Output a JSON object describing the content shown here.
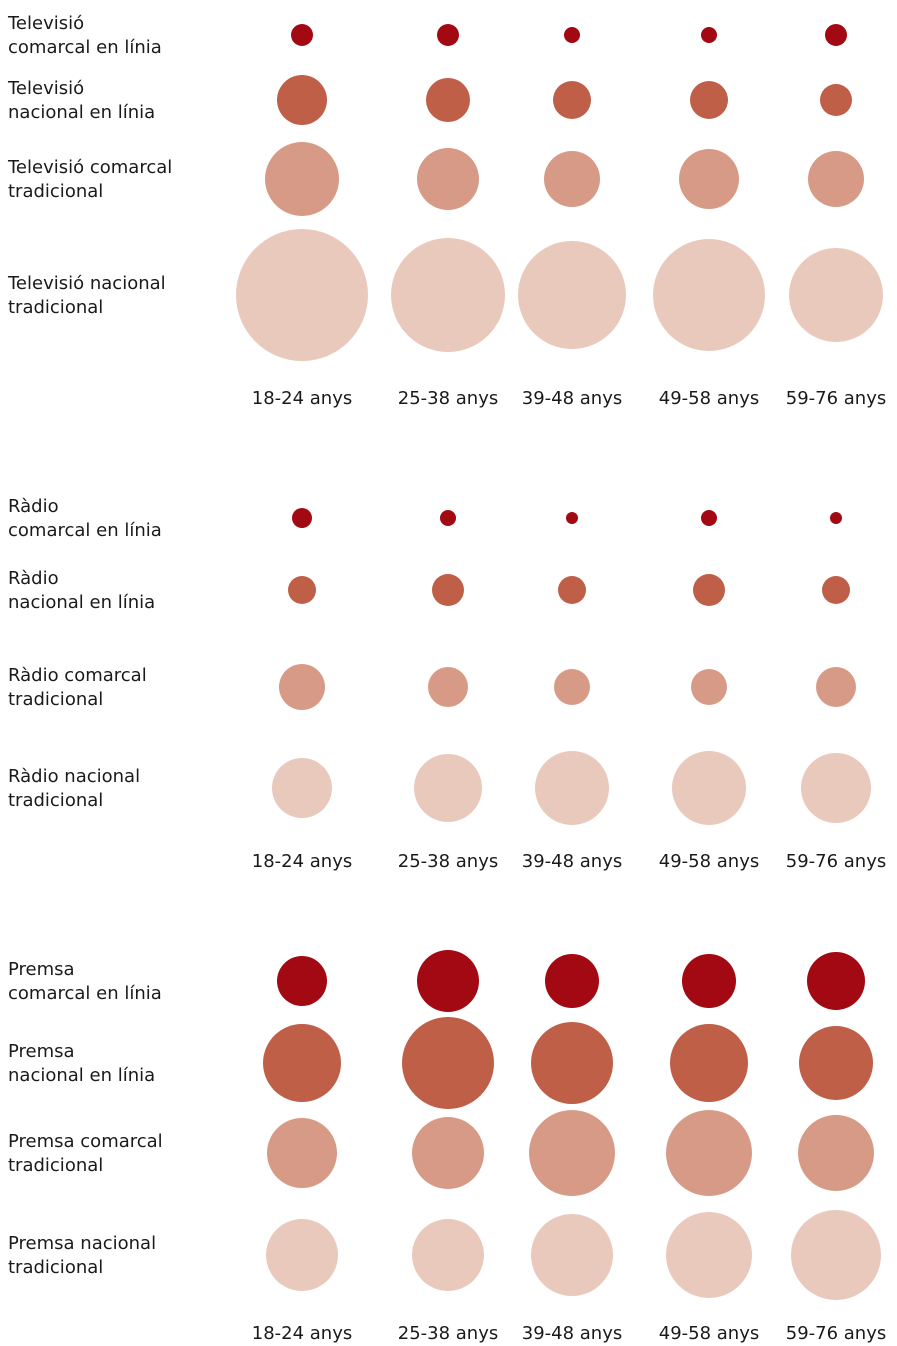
{
  "chart_data": {
    "type": "bubble",
    "categories": [
      "18-24 anys",
      "25-38 anys",
      "39-48 anys",
      "49-58 anys",
      "59-76 anys"
    ],
    "colors": {
      "comarcal_en_linia": "#a20912",
      "nacional_en_linia": "#bf5f47",
      "comarcal_tradicional": "#d79a86",
      "nacional_tradicional": "#e9c9bc"
    },
    "panels": [
      {
        "id": "televisio",
        "rows": [
          {
            "label": [
              "Televisió",
              "comarcal en línia"
            ],
            "color_key": "comarcal_en_linia",
            "values": [
              11,
              11,
              8,
              8,
              11
            ]
          },
          {
            "label": [
              "Televisió",
              "nacional en línia"
            ],
            "color_key": "nacional_en_linia",
            "values": [
              25,
              22,
              19,
              19,
              16
            ]
          },
          {
            "label": [
              "Televisió comarcal",
              "tradicional"
            ],
            "color_key": "comarcal_tradicional",
            "values": [
              37,
              31,
              28,
              30,
              28
            ]
          },
          {
            "label": [
              "Televisió nacional",
              "tradicional"
            ],
            "color_key": "nacional_tradicional",
            "values": [
              66,
              57,
              54,
              56,
              47
            ]
          }
        ]
      },
      {
        "id": "radio",
        "rows": [
          {
            "label": [
              "Ràdio",
              "comarcal en línia"
            ],
            "color_key": "comarcal_en_linia",
            "values": [
              10,
              8,
              6,
              8,
              6
            ]
          },
          {
            "label": [
              "Ràdio",
              "nacional en línia"
            ],
            "color_key": "nacional_en_linia",
            "values": [
              14,
              16,
              14,
              16,
              14
            ]
          },
          {
            "label": [
              "Ràdio comarcal",
              "tradicional"
            ],
            "color_key": "comarcal_tradicional",
            "values": [
              23,
              20,
              18,
              18,
              20
            ]
          },
          {
            "label": [
              "Ràdio nacional",
              "tradicional"
            ],
            "color_key": "nacional_tradicional",
            "values": [
              30,
              34,
              37,
              37,
              35
            ]
          }
        ]
      },
      {
        "id": "premsa",
        "rows": [
          {
            "label": [
              "Premsa",
              "comarcal en línia"
            ],
            "color_key": "comarcal_en_linia",
            "values": [
              25,
              31,
              27,
              27,
              29
            ]
          },
          {
            "label": [
              "Premsa",
              "nacional en línia"
            ],
            "color_key": "nacional_en_linia",
            "values": [
              39,
              46,
              41,
              39,
              37
            ]
          },
          {
            "label": [
              "Premsa comarcal",
              "tradicional"
            ],
            "color_key": "comarcal_tradicional",
            "values": [
              35,
              36,
              43,
              43,
              38
            ]
          },
          {
            "label": [
              "Premsa nacional",
              "tradicional"
            ],
            "color_key": "nacional_tradicional",
            "values": [
              36,
              36,
              41,
              43,
              45
            ]
          }
        ]
      }
    ]
  }
}
